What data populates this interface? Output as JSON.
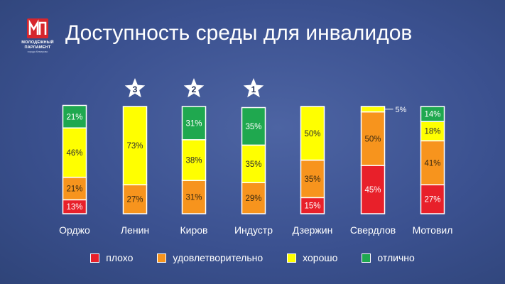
{
  "header": {
    "title": "Доступность среды для инвалидов",
    "logo": {
      "mark": "МП",
      "line1": "МОЛОДЁЖНЫЙ",
      "line2": "ПАРЛАМЕНТ",
      "subtitle": "города Кемерово"
    }
  },
  "colors": {
    "background": "#3f5591",
    "bad": "#e8202a",
    "satisfactory": "#f7941d",
    "good": "#ffff00",
    "excellent": "#1fa84f",
    "segment_border": "#ffffff"
  },
  "legend": {
    "placement": "bottom",
    "items": [
      {
        "label": "плохо",
        "color": "#e8202a"
      },
      {
        "label": "удовлетворительно",
        "color": "#f7941d"
      },
      {
        "label": "хорошо",
        "color": "#ffff00"
      },
      {
        "label": "отлично",
        "color": "#1fa84f"
      }
    ]
  },
  "chart_data": {
    "type": "bar",
    "stacked": true,
    "percent": true,
    "categories": [
      "Орджо",
      "Ленин",
      "Киров",
      "Индустр",
      "Дзержин",
      "Свердлов",
      "Мотовил"
    ],
    "series": [
      {
        "name": "плохо",
        "color": "#e8202a",
        "values": [
          13,
          0,
          0,
          0,
          15,
          45,
          27
        ]
      },
      {
        "name": "удовлетворительно",
        "color": "#f7941d",
        "values": [
          21,
          27,
          31,
          29,
          35,
          50,
          41
        ]
      },
      {
        "name": "хорошо",
        "color": "#ffff00",
        "values": [
          46,
          73,
          38,
          35,
          50,
          5,
          18
        ]
      },
      {
        "name": "отлично",
        "color": "#1fa84f",
        "values": [
          21,
          0,
          31,
          35,
          0,
          0,
          14
        ]
      }
    ],
    "ylim": [
      0,
      100
    ],
    "grid": false,
    "annotations": {
      "rank_stars": [
        {
          "category": "Ленин",
          "rank": "3"
        },
        {
          "category": "Киров",
          "rank": "2"
        },
        {
          "category": "Индустр",
          "rank": "1"
        }
      ],
      "callouts": [
        {
          "category": "Свердлов",
          "series": "хорошо",
          "label": "5%"
        }
      ]
    }
  }
}
